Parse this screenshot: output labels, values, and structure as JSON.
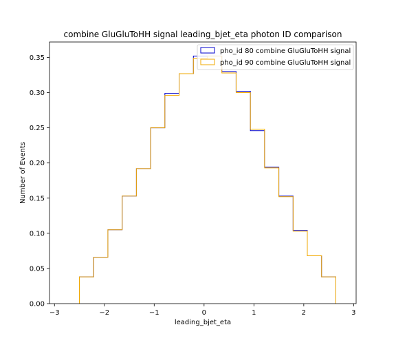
{
  "chart_data": {
    "type": "histogram-step",
    "title": "combine GluGluToHH signal leading_bjet_eta photon ID comparison",
    "xlabel": "leading_bjet_eta",
    "ylabel": "Number of Events",
    "xlim": [
      -3.1,
      3.05
    ],
    "ylim": [
      0,
      0.372
    ],
    "xticks": [
      -3,
      -2,
      -1,
      0,
      1,
      2,
      3
    ],
    "yticks": [
      0.0,
      0.05,
      0.1,
      0.15,
      0.2,
      0.25,
      0.3,
      0.35
    ],
    "ytick_labels": [
      "0.00",
      "0.05",
      "0.10",
      "0.15",
      "0.20",
      "0.25",
      "0.30",
      "0.35"
    ],
    "bin_edges": [
      -2.5,
      -2.214,
      -1.929,
      -1.643,
      -1.357,
      -1.071,
      -0.786,
      -0.5,
      -0.214,
      0.071,
      0.357,
      0.643,
      0.929,
      1.214,
      1.5,
      1.786,
      2.071,
      2.357,
      2.643
    ],
    "grid": false,
    "legend_position": "top-right",
    "series": [
      {
        "name": "pho_id 80 combine GluGluToHH signal",
        "color": "#0000cc",
        "values": [
          0.038,
          0.066,
          0.105,
          0.153,
          0.192,
          0.25,
          0.299,
          0.327,
          0.352,
          0.352,
          0.33,
          0.302,
          0.246,
          0.194,
          0.153,
          0.104,
          0.068,
          0.038
        ]
      },
      {
        "name": "pho_id 90 combine GluGluToHH signal",
        "color": "#f2a900",
        "values": [
          0.038,
          0.066,
          0.105,
          0.153,
          0.192,
          0.25,
          0.296,
          0.327,
          0.349,
          0.352,
          0.328,
          0.3,
          0.248,
          0.193,
          0.152,
          0.103,
          0.068,
          0.038
        ]
      }
    ]
  }
}
